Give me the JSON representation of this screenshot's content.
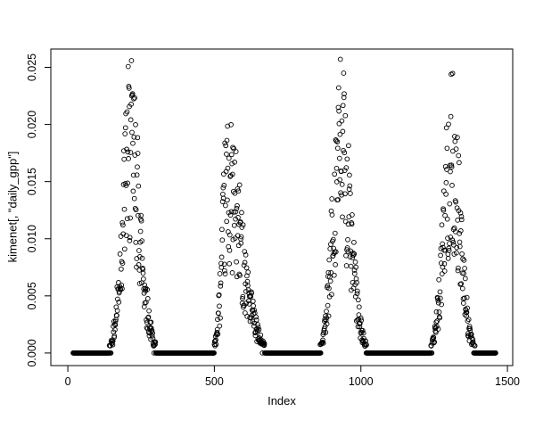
{
  "window": {
    "background_color": "#ffffff",
    "foreground_color": "#000000"
  },
  "chart_data": {
    "type": "scatter",
    "title": "",
    "xlabel": "Index",
    "ylabel": "kimenet[, \"daily_gpp\"]",
    "legend": null,
    "grid": false,
    "box": true,
    "xlim": [
      -58,
      1518
    ],
    "ylim": [
      -0.0011,
      0.0266
    ],
    "x_ticks": {
      "values": [
        0,
        500,
        1000,
        1500
      ],
      "labels": [
        "0",
        "500",
        "1000",
        "1500"
      ]
    },
    "y_ticks": {
      "values": [
        0,
        0.005,
        0.01,
        0.015,
        0.02,
        0.025
      ],
      "labels": [
        "0.000",
        "0.005",
        "0.010",
        "0.015",
        "0.020",
        "0.025"
      ]
    },
    "marker": {
      "shape": "open-circle",
      "color": "#000000",
      "radius": 2.4,
      "stroke_width": 0.9
    },
    "index_range": {
      "start": 18,
      "end": 1460,
      "step": 1
    },
    "zero_threshold": 0.0006,
    "noise": {
      "min_factor": 0.35,
      "span": 0.67,
      "seed": 42
    },
    "seasons": [
      {
        "peak": 212,
        "rise_width": 26,
        "fall_width": 34,
        "amplitude": 0.0255
      },
      {
        "peak": 545,
        "rise_width": 18,
        "fall_width": 50,
        "amplitude": 0.0205
      },
      {
        "peak": 930,
        "rise_width": 26,
        "fall_width": 34,
        "amplitude": 0.0255
      },
      {
        "peak": 1308,
        "rise_width": 26,
        "fall_width": 30,
        "amplitude": 0.0245
      }
    ],
    "zero_runs": [
      [
        18,
        150
      ],
      [
        305,
        495
      ],
      [
        670,
        858
      ],
      [
        1005,
        1240
      ],
      [
        1375,
        1460
      ]
    ],
    "description": "R base-graphics scatter plot of daily GPP versus index: four seasonal peaks (~0.0255 at index ~212, ~0.0205 at ~545, ~0.0255 at ~930, ~0.0245 at ~1308) separated by dense runs of exact-zero values along the baseline."
  }
}
